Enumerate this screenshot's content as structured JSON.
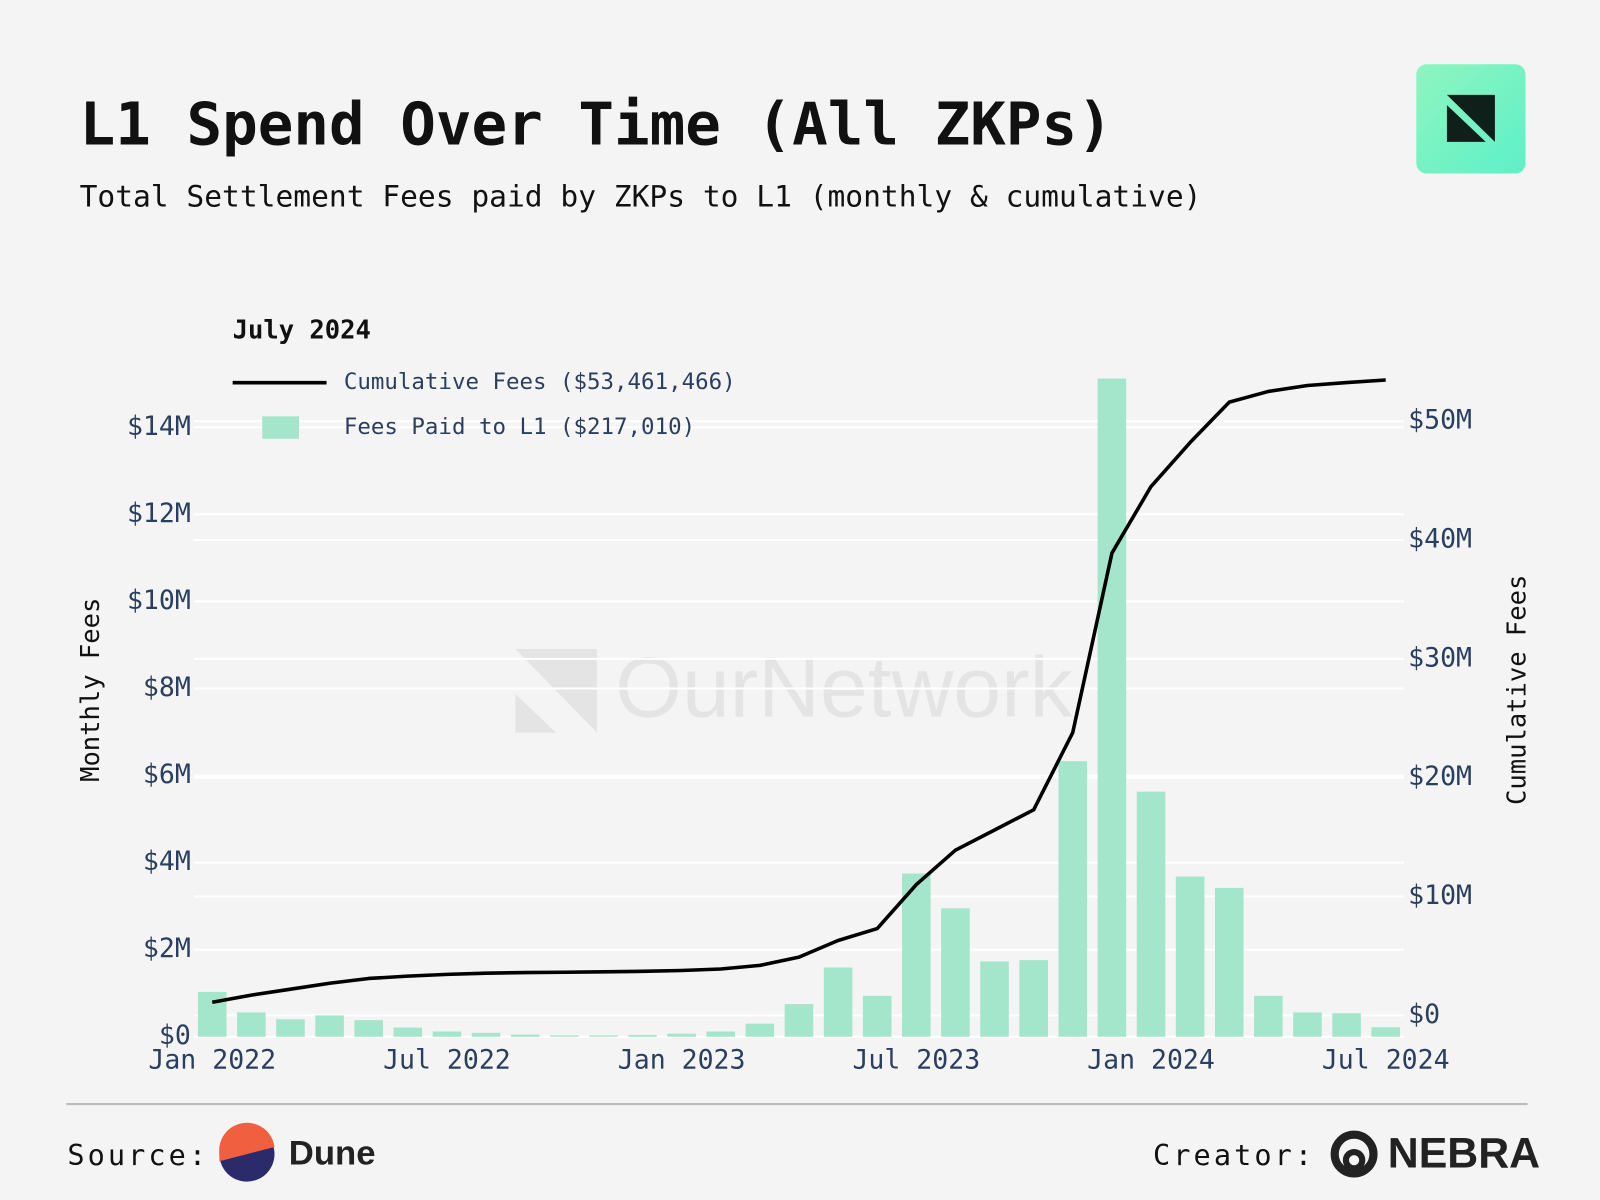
{
  "chart_data": {
    "type": "bar",
    "title": "L1 Spend Over Time (All ZKPs)",
    "subtitle": "Total Settlement Fees paid by ZKPs to L1 (monthly & cumulative)",
    "watermark": "OurNetwork",
    "categories": [
      "Jan 2022",
      null,
      null,
      null,
      null,
      null,
      "Jul 2022",
      null,
      null,
      null,
      null,
      null,
      "Jan 2023",
      null,
      null,
      null,
      null,
      null,
      "Jul 2023",
      null,
      null,
      null,
      null,
      null,
      "Jan 2024",
      null,
      null,
      null,
      null,
      null,
      "Jul 2024"
    ],
    "y_label": "Monthly Fees",
    "y2_label": "Cumulative Fees",
    "legend_title": "July 2024",
    "legend_position": "top-left",
    "series": [
      {
        "name": "Cumulative Fees ($53,461,466)",
        "type": "line",
        "axis": "y2",
        "color": "#000000",
        "values": [
          1100000,
          1700000,
          2200000,
          2700000,
          3100000,
          3300000,
          3450000,
          3550000,
          3600000,
          3630000,
          3660000,
          3700000,
          3770000,
          3900000,
          4200000,
          4900000,
          6300000,
          7300000,
          11000000,
          13900000,
          15600000,
          17300000,
          23800000,
          38900000,
          44500000,
          48200000,
          51600000,
          52500000,
          53000000,
          53250000,
          53461466
        ]
      },
      {
        "name": "Fees Paid to L1 ($217,010)",
        "type": "bar",
        "color": "#a3e6cb",
        "values": [
          1030000,
          560000,
          400000,
          490000,
          380000,
          210000,
          120000,
          90000,
          50000,
          30000,
          30000,
          40000,
          70000,
          120000,
          300000,
          750000,
          1590000,
          940000,
          3750000,
          2950000,
          1730000,
          1760000,
          6330000,
          15120000,
          5630000,
          3680000,
          3420000,
          940000,
          560000,
          540000,
          217010
        ]
      }
    ],
    "ylim": [
      0,
      15260000
    ],
    "yticks": [
      {
        "value": 0,
        "label": "$0"
      },
      {
        "value": 2000000,
        "label": "$2M"
      },
      {
        "value": 4000000,
        "label": "$4M"
      },
      {
        "value": 6000000,
        "label": "$6M"
      },
      {
        "value": 8000000,
        "label": "$8M"
      },
      {
        "value": 10000000,
        "label": "$10M"
      },
      {
        "value": 12000000,
        "label": "$12M"
      },
      {
        "value": 14000000,
        "label": "$14M"
      }
    ],
    "y2lim": [
      -1800000,
      54100000
    ],
    "y2ticks": [
      {
        "value": 0,
        "label": "$0"
      },
      {
        "value": 10000000,
        "label": "$10M"
      },
      {
        "value": 20000000,
        "label": "$20M"
      },
      {
        "value": 30000000,
        "label": "$30M"
      },
      {
        "value": 40000000,
        "label": "$40M"
      },
      {
        "value": 50000000,
        "label": "$50M"
      }
    ],
    "grid": true
  },
  "footer": {
    "source_label": "Source:",
    "source": "Dune",
    "creator_label": "Creator:",
    "creator": "NEBRA"
  }
}
